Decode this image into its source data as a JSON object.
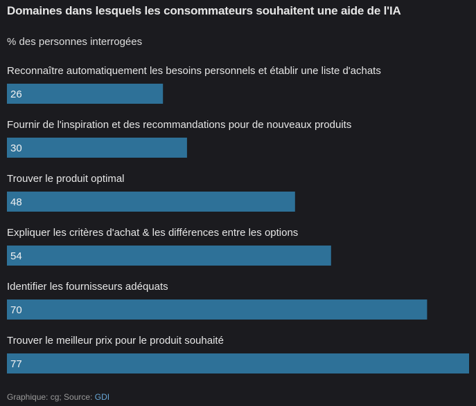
{
  "header": {
    "title": "Domaines dans lesquels les consommateurs souhaitent une aide de l'IA",
    "subtitle": "% des personnes interrogées"
  },
  "footer": {
    "credit": "Graphique: cg; Source: ",
    "source_name": "GDI"
  },
  "colors": {
    "bar": "#2e7198",
    "background": "#1b1b1f",
    "text": "#e6e6e6",
    "bar_label": "#f2f2f2"
  },
  "chart_data": {
    "type": "bar",
    "orientation": "horizontal",
    "title": "Domaines dans lesquels les consommateurs souhaitent une aide de l'IA",
    "subtitle": "% des personnes interrogées",
    "categories": [
      "Reconnaître automatiquement les besoins personnels et établir une liste d'achats",
      "Fournir de l'inspiration et des recommandations pour de nouveaux produits",
      "Trouver le produit optimal",
      "Expliquer les critères d'achat & les différences entre les options",
      "Identifier les fournisseurs adéquats",
      "Trouver le meilleur prix pour le produit souhaité"
    ],
    "values": [
      26,
      30,
      48,
      54,
      70,
      77
    ],
    "xlim": [
      0,
      77
    ],
    "grid": false,
    "legend": "none"
  }
}
